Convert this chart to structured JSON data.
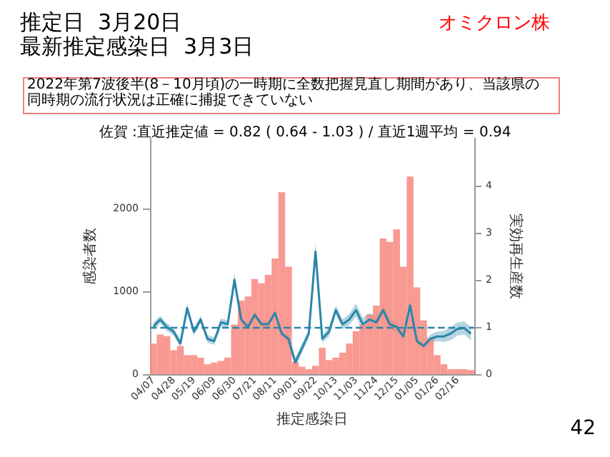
{
  "chart_data": {
    "type": "bar",
    "title": "佐賀 :直近推定値 = 0.82 ( 0.64 - 1.03 ) / 直近1週平均 = 0.94",
    "xlabel": "推定感染日",
    "ylabel": "感染者数",
    "y2label": "実効再生産数",
    "annotations": [
      "推定日  3月20日",
      "最新推定感染日  3月3日",
      "オミクロン株",
      "2022年第7波後半(8－10月頃)の一時期に全数把握見直し期間があり、当該県の同時期の流行状況は正確に捕捉できていない",
      "42"
    ],
    "categories": [
      "04/07",
      null,
      null,
      "04/28",
      null,
      null,
      "05/19",
      null,
      null,
      "06/09",
      null,
      null,
      "06/30",
      null,
      null,
      "07/21",
      null,
      null,
      "08/11",
      null,
      null,
      "09/01",
      null,
      null,
      "09/22",
      null,
      null,
      "10/13",
      null,
      null,
      "11/03",
      null,
      null,
      "11/24",
      null,
      null,
      "12/15",
      null,
      null,
      "01/05",
      null,
      null,
      "01/26",
      null,
      null,
      "02/16",
      null,
      null
    ],
    "series": [
      {
        "color": "#f7877f",
        "values": [
          370,
          480,
          460,
          290,
          340,
          230,
          230,
          200,
          120,
          140,
          160,
          200,
          600,
          890,
          940,
          1150,
          1100,
          1200,
          1400,
          2200,
          1300,
          150,
          90,
          60,
          100,
          320,
          170,
          200,
          260,
          370,
          520,
          600,
          720,
          830,
          1640,
          1600,
          1750,
          1300,
          2390,
          1050,
          650,
          430,
          230,
          120,
          60,
          60,
          60,
          50
        ]
      },
      {
        "type": "line",
        "axis": "y2",
        "color": "#2a86a8",
        "values": [
          1.01,
          1.16,
          1.0,
          0.9,
          0.65,
          1.4,
          0.9,
          1.16,
          0.75,
          0.7,
          1.1,
          1.06,
          2.0,
          1.16,
          1.0,
          1.26,
          1.06,
          1.06,
          1.3,
          0.86,
          0.75,
          0.25,
          0.55,
          0.86,
          2.6,
          0.75,
          0.9,
          1.36,
          1.06,
          1.16,
          1.36,
          1.06,
          1.16,
          1.1,
          1.36,
          1.06,
          1.0,
          0.8,
          1.46,
          0.7,
          0.6,
          0.75,
          0.8,
          0.8,
          0.86,
          0.96,
          0.98,
          0.86
        ],
        "lower": [
          0.93,
          1.08,
          0.92,
          0.82,
          0.57,
          1.3,
          0.82,
          1.08,
          0.67,
          0.62,
          1.02,
          0.98,
          1.85,
          1.08,
          0.93,
          1.18,
          0.99,
          0.99,
          1.22,
          0.78,
          0.66,
          0.15,
          0.45,
          0.77,
          2.4,
          0.67,
          0.8,
          1.26,
          0.96,
          1.04,
          1.22,
          0.92,
          1.02,
          0.98,
          1.24,
          0.95,
          0.9,
          0.72,
          1.36,
          0.62,
          0.52,
          0.66,
          0.7,
          0.68,
          0.72,
          0.82,
          0.84,
          0.72
        ],
        "upper": [
          1.09,
          1.24,
          1.08,
          0.98,
          0.73,
          1.5,
          0.98,
          1.24,
          0.83,
          0.78,
          1.18,
          1.14,
          2.15,
          1.24,
          1.07,
          1.34,
          1.13,
          1.13,
          1.38,
          0.94,
          0.84,
          0.35,
          0.65,
          0.95,
          2.8,
          0.83,
          1.0,
          1.46,
          1.16,
          1.28,
          1.5,
          1.2,
          1.3,
          1.22,
          1.48,
          1.17,
          1.1,
          0.88,
          1.56,
          0.78,
          0.68,
          0.84,
          0.9,
          0.92,
          1.0,
          1.1,
          1.12,
          1.0
        ]
      }
    ],
    "ylim": [
      0,
      2850
    ],
    "yticks": [
      0,
      1000,
      2000
    ],
    "y2lim": [
      0,
      5
    ],
    "y2ticks": [
      0,
      1,
      2,
      3,
      4
    ],
    "ref_lines": [
      {
        "axis": "y2",
        "value": 1,
        "color": "#2a86a8",
        "line_style": "dashed"
      }
    ],
    "grid": false
  }
}
